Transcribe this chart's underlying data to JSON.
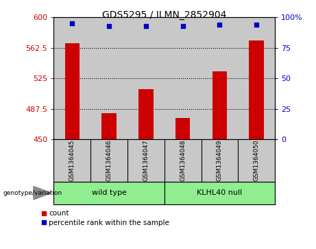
{
  "title": "GDS5295 / ILMN_2852904",
  "samples": [
    "GSM1364045",
    "GSM1364046",
    "GSM1364047",
    "GSM1364048",
    "GSM1364049",
    "GSM1364050"
  ],
  "counts": [
    568,
    482,
    512,
    476,
    534,
    572
  ],
  "percentile_ranks": [
    95,
    93,
    93,
    93,
    94,
    94
  ],
  "ylim_left": [
    450,
    600
  ],
  "ylim_right": [
    0,
    100
  ],
  "yticks_left": [
    450,
    487.5,
    525,
    562.5,
    600
  ],
  "yticks_right": [
    0,
    25,
    50,
    75,
    100
  ],
  "group1_label": "wild type",
  "group2_label": "KLHL40 null",
  "group_color": "#90EE90",
  "bar_color": "#CC0000",
  "dot_color": "#0000CC",
  "bg_color": "#C8C8C8",
  "left_tick_color": "#CC0000",
  "right_tick_color": "#0000CC",
  "genotype_label": "genotype/variation",
  "legend_count_label": "count",
  "legend_pct_label": "percentile rank within the sample",
  "bar_width": 0.4
}
